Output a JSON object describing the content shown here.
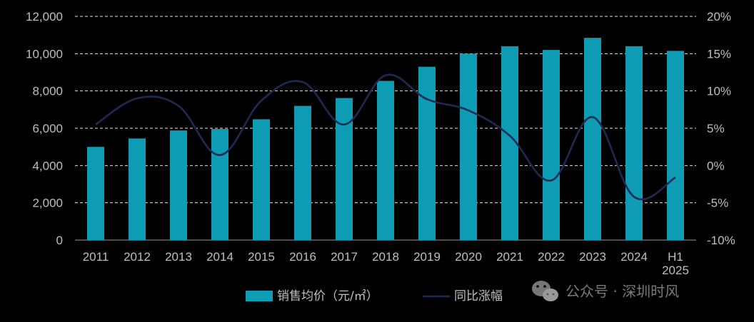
{
  "chart_data": {
    "type": "bar",
    "categories": [
      "2011",
      "2012",
      "2013",
      "2014",
      "2015",
      "2016",
      "2017",
      "2018",
      "2019",
      "2020",
      "2021",
      "2022",
      "2023",
      "2024",
      "H1\n2025"
    ],
    "series": [
      {
        "name": "销售均价（元/㎡）",
        "type": "bar",
        "axis": "left",
        "color": "#0e9cb4",
        "values": [
          5000,
          5450,
          5880,
          5960,
          6480,
          7200,
          7620,
          8540,
          9300,
          10000,
          10400,
          10200,
          10850,
          10400,
          10150
        ]
      },
      {
        "name": "同比涨幅",
        "type": "line",
        "axis": "right",
        "color": "#1f2a52",
        "values": [
          5.5,
          9.0,
          8.0,
          1.4,
          8.7,
          11.2,
          5.5,
          12.1,
          8.9,
          7.4,
          4.0,
          -2.0,
          6.5,
          -4.2,
          -1.6
        ]
      }
    ],
    "y_left": {
      "min": 0,
      "max": 12000,
      "ticks": [
        "0",
        "2,000",
        "4,000",
        "6,000",
        "8,000",
        "10,000",
        "12,000"
      ]
    },
    "y_right": {
      "min": -10,
      "max": 20,
      "ticks": [
        "-10%",
        "-5%",
        "0%",
        "5%",
        "10%",
        "15%",
        "20%"
      ]
    },
    "grid": "dashed-horizontal",
    "legend_position": "bottom"
  },
  "watermark": {
    "text": "公众号 · 深圳时风",
    "icon": "wechat-icon"
  }
}
